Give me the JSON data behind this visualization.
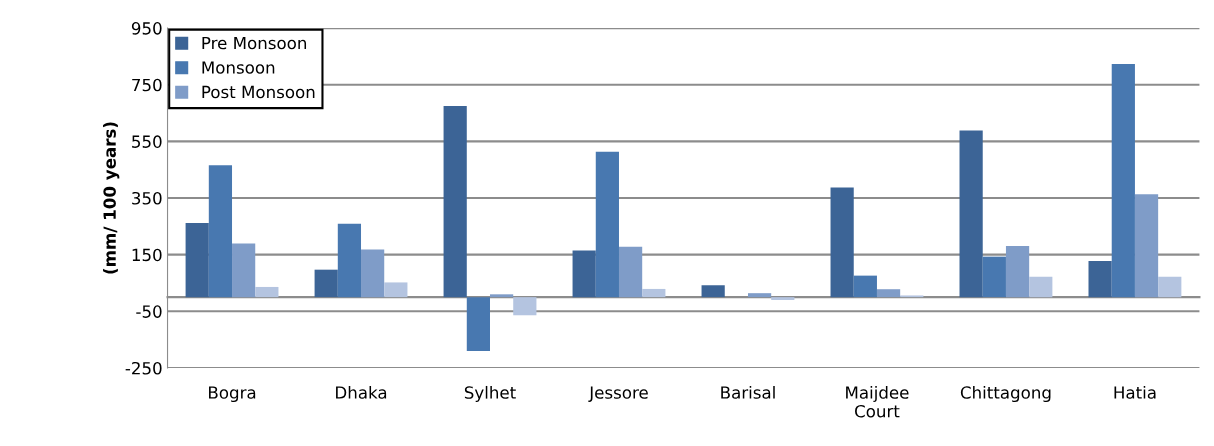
{
  "chart_data": {
    "type": "bar",
    "ylabel": "(mm/ 100 years)",
    "categories": [
      "Bogra",
      "Dhaka",
      "Sylhet",
      "Jessore",
      "Barisal",
      "Maijdee\nCourt",
      "Chittagong",
      "Hatia"
    ],
    "series": [
      {
        "name": "Pre Monsoon",
        "color": "#3c6496",
        "values": [
          262,
          97,
          675,
          165,
          42,
          387,
          588,
          128
        ]
      },
      {
        "name": "Monsoon",
        "color": "#4878b0",
        "values": [
          466,
          259,
          -190,
          513,
          0,
          76,
          143,
          823
        ]
      },
      {
        "name": "Post Monsoon",
        "color": "#7f9cc8",
        "values": [
          189,
          168,
          10,
          178,
          14,
          28,
          181,
          363
        ]
      },
      {
        "color": "#b4c4e0",
        "values": [
          36,
          52,
          -64,
          29,
          -10,
          6,
          72,
          72
        ]
      }
    ],
    "ylim": [
      -250,
      950
    ],
    "yticks": [
      -250,
      -50,
      150,
      350,
      550,
      750,
      950
    ],
    "grid": "y",
    "legend": "top left"
  }
}
